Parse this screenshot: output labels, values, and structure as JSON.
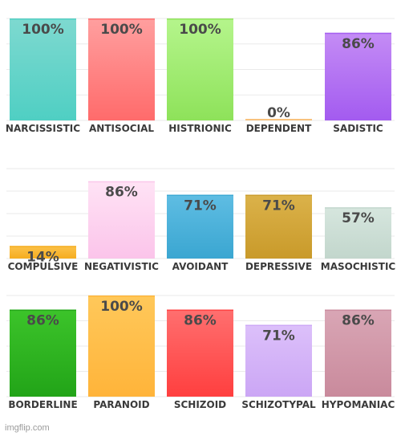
{
  "chart_data": [
    {
      "type": "bar",
      "ylim": [
        0,
        100
      ],
      "grid": true,
      "categories": [
        "NARCISSISTIC",
        "ANTISOCIAL",
        "HISTRIONIC",
        "DEPENDENT",
        "SADISTIC"
      ],
      "values": [
        100,
        100,
        100,
        0,
        86
      ],
      "labels": [
        "100%",
        "100%",
        "100%",
        "0%",
        "86%"
      ],
      "colors": [
        [
          "#7ed9d0",
          "#4fcfc3"
        ],
        [
          "#ff9f9f",
          "#ff6b6b"
        ],
        [
          "#b5f58c",
          "#8ee25a"
        ],
        [
          "#ffe3b5",
          "#f7c07a"
        ],
        [
          "#c48cf5",
          "#a35bf0"
        ]
      ]
    },
    {
      "type": "bar",
      "ylim": [
        0,
        100
      ],
      "grid": true,
      "categories": [
        "COMPULSIVE",
        "NEGATIVISTIC",
        "AVOIDANT",
        "DEPRESSIVE",
        "MASOCHISTIC"
      ],
      "values": [
        14,
        86,
        71,
        71,
        57
      ],
      "labels": [
        "14%",
        "86%",
        "71%",
        "71%",
        "57%"
      ],
      "colors": [
        [
          "#fcc24a",
          "#f5ad1f"
        ],
        [
          "#ffe3f5",
          "#fbc4ea"
        ],
        [
          "#5fbde3",
          "#3aa6d1"
        ],
        [
          "#dbb24a",
          "#c99a2a"
        ],
        [
          "#d6e6de",
          "#c2d6cc"
        ]
      ]
    },
    {
      "type": "bar",
      "ylim": [
        0,
        100
      ],
      "grid": true,
      "categories": [
        "BORDERLINE",
        "PARANOID",
        "SCHIZOID",
        "SCHIZOTYPAL",
        "HYPOMANIAC"
      ],
      "values": [
        86,
        100,
        86,
        71,
        86
      ],
      "labels": [
        "86%",
        "100%",
        "86%",
        "71%",
        "86%"
      ],
      "colors": [
        [
          "#3cc42a",
          "#22a418"
        ],
        [
          "#ffc85a",
          "#ffb43a"
        ],
        [
          "#ff6f6f",
          "#ff3f3f"
        ],
        [
          "#dcc0fa",
          "#cba6f5"
        ],
        [
          "#d9a6b5",
          "#c98a9c"
        ]
      ]
    }
  ],
  "watermark": "imgflip.com"
}
